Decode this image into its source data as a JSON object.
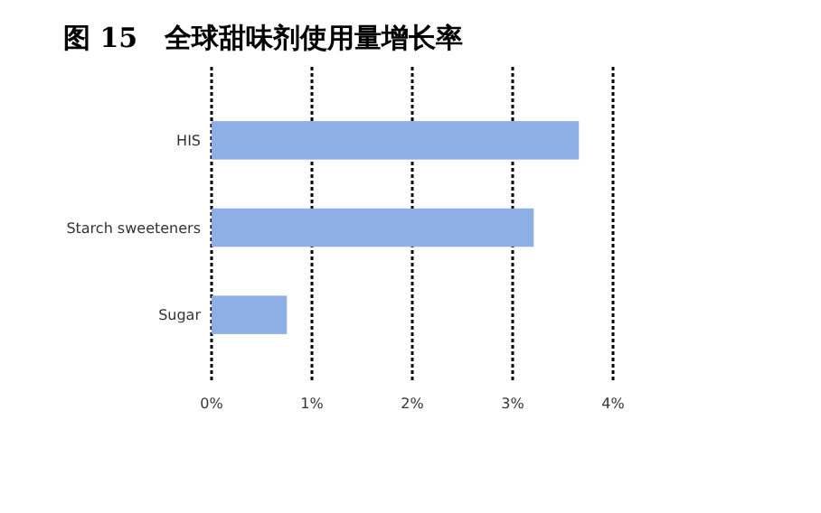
{
  "chart_data": {
    "type": "bar",
    "orientation": "horizontal",
    "title": "图 15　全球甜味剂使用量增长率",
    "categories": [
      "HIS",
      "Starch sweeteners",
      "Sugar"
    ],
    "values": [
      3.66,
      3.21,
      0.75
    ],
    "color": "#8eaee6",
    "xlim": [
      0,
      4
    ],
    "xticks": [
      {
        "value": 0,
        "label": "0%"
      },
      {
        "value": 1,
        "label": "1%"
      },
      {
        "value": 2,
        "label": "2%"
      },
      {
        "value": 3,
        "label": "3%"
      },
      {
        "value": 4,
        "label": "4%"
      }
    ],
    "grid": "x",
    "line_style": "dotted"
  }
}
